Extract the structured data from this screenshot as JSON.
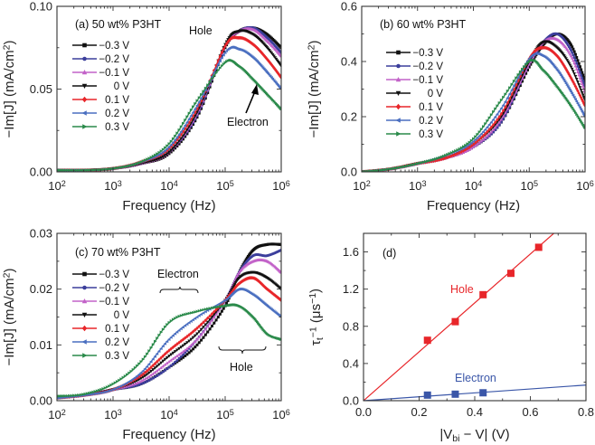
{
  "chart_data": [
    {
      "type": "line",
      "title": "(a) 50 wt% P3HT",
      "xlabel": "Frequency (Hz)",
      "ylabel": "−Im[J] (mA/cm^{2})",
      "xscale": "log",
      "xlim": [
        100,
        1000000
      ],
      "ylim": [
        0,
        0.1
      ],
      "xticks": [
        "10^{2}",
        "10^{3}",
        "10^{4}",
        "10^{5}",
        "10^{6}"
      ],
      "yticks": [
        {
          "v": 0,
          "label": "0.00"
        },
        {
          "v": 0.05,
          "label": "0.05"
        },
        {
          "v": 0.1,
          "label": "0.10"
        }
      ],
      "x_log10": [
        2,
        2.5,
        3,
        3.5,
        4,
        4.5,
        5,
        5.25,
        5.5,
        5.75,
        6
      ],
      "series": [
        {
          "name": "−0.3 V",
          "color": "#111111",
          "values": [
            0.001,
            0.001,
            0.002,
            0.005,
            0.011,
            0.033,
            0.075,
            0.085,
            0.087,
            0.083,
            0.075
          ]
        },
        {
          "name": "−0.2 V",
          "color": "#3c3f9c",
          "values": [
            0.001,
            0.001,
            0.002,
            0.005,
            0.012,
            0.034,
            0.076,
            0.085,
            0.087,
            0.081,
            0.072
          ]
        },
        {
          "name": "−0.1 V",
          "color": "#c262c8",
          "values": [
            0.001,
            0.001,
            0.002,
            0.005,
            0.012,
            0.035,
            0.076,
            0.085,
            0.086,
            0.079,
            0.07
          ]
        },
        {
          "name": "0 V",
          "color": "#111111",
          "values": [
            0.001,
            0.001,
            0.002,
            0.005,
            0.012,
            0.036,
            0.077,
            0.085,
            0.083,
            0.075,
            0.064
          ]
        },
        {
          "name": "0.1 V",
          "color": "#e8262a",
          "values": [
            0.001,
            0.001,
            0.002,
            0.006,
            0.014,
            0.038,
            0.076,
            0.081,
            0.077,
            0.068,
            0.057
          ]
        },
        {
          "name": "0.2 V",
          "color": "#4a6fc0",
          "values": [
            0.001,
            0.001,
            0.002,
            0.006,
            0.015,
            0.04,
            0.072,
            0.074,
            0.069,
            0.06,
            0.05
          ]
        },
        {
          "name": "0.3 V",
          "color": "#2a8a4a",
          "values": [
            0.001,
            0.001,
            0.002,
            0.006,
            0.017,
            0.043,
            0.066,
            0.064,
            0.056,
            0.047,
            0.038
          ]
        }
      ],
      "annotations": {
        "hole": "Hole",
        "electron": "Electron"
      }
    },
    {
      "type": "line",
      "title": "(b) 60 wt% P3HT",
      "xlabel": "Frequency (Hz)",
      "ylabel": "−Im[J] (mA/cm^{2})",
      "xscale": "log",
      "xlim": [
        100,
        1000000
      ],
      "ylim": [
        0,
        0.6
      ],
      "xticks": [
        "10^{2}",
        "10^{3}",
        "10^{4}",
        "10^{5}",
        "10^{6}"
      ],
      "yticks": [
        {
          "v": 0,
          "label": "0.0"
        },
        {
          "v": 0.2,
          "label": "0.2"
        },
        {
          "v": 0.4,
          "label": "0.4"
        },
        {
          "v": 0.6,
          "label": "0.6"
        }
      ],
      "x_log10": [
        2,
        2.5,
        3,
        3.5,
        4,
        4.5,
        5,
        5.25,
        5.5,
        5.75,
        6
      ],
      "series": [
        {
          "name": "−0.3 V",
          "color": "#111111",
          "values": [
            0.0,
            0.01,
            0.03,
            0.05,
            0.09,
            0.18,
            0.38,
            0.46,
            0.5,
            0.46,
            0.33
          ]
        },
        {
          "name": "−0.2 V",
          "color": "#3c3f9c",
          "values": [
            0.0,
            0.01,
            0.03,
            0.05,
            0.09,
            0.18,
            0.39,
            0.47,
            0.5,
            0.44,
            0.31
          ]
        },
        {
          "name": "−0.1 V",
          "color": "#c262c8",
          "values": [
            0.0,
            0.01,
            0.03,
            0.05,
            0.09,
            0.19,
            0.39,
            0.47,
            0.48,
            0.42,
            0.29
          ]
        },
        {
          "name": "0 V",
          "color": "#111111",
          "values": [
            0.0,
            0.01,
            0.03,
            0.05,
            0.1,
            0.2,
            0.4,
            0.47,
            0.45,
            0.38,
            0.26
          ]
        },
        {
          "name": "0.1 V",
          "color": "#e8262a",
          "values": [
            0.0,
            0.01,
            0.03,
            0.05,
            0.1,
            0.21,
            0.41,
            0.45,
            0.42,
            0.34,
            0.24
          ]
        },
        {
          "name": "0.2 V",
          "color": "#4a6fc0",
          "values": [
            0.0,
            0.01,
            0.03,
            0.06,
            0.11,
            0.23,
            0.41,
            0.42,
            0.37,
            0.29,
            0.2
          ]
        },
        {
          "name": "0.3 V",
          "color": "#2a8a4a",
          "values": [
            0.0,
            0.01,
            0.03,
            0.06,
            0.12,
            0.26,
            0.4,
            0.37,
            0.31,
            0.24,
            0.16
          ]
        }
      ]
    },
    {
      "type": "line",
      "title": "(c) 70 wt% P3HT",
      "xlabel": "Frequency (Hz)",
      "ylabel": "−Im[J] (mA/cm^{2})",
      "xscale": "log",
      "xlim": [
        100,
        1000000
      ],
      "ylim": [
        0,
        0.03
      ],
      "xticks": [
        "10^{2}",
        "10^{3}",
        "10^{4}",
        "10^{5}",
        "10^{6}"
      ],
      "yticks": [
        {
          "v": 0,
          "label": "0.00"
        },
        {
          "v": 0.01,
          "label": "0.01"
        },
        {
          "v": 0.02,
          "label": "0.02"
        },
        {
          "v": 0.03,
          "label": "0.03"
        }
      ],
      "x_log10": [
        2,
        2.5,
        3,
        3.5,
        4,
        4.5,
        5,
        5.25,
        5.5,
        5.75,
        6
      ],
      "series": [
        {
          "name": "−0.3 V",
          "color": "#111111",
          "values": [
            0.0005,
            0.001,
            0.002,
            0.003,
            0.006,
            0.01,
            0.017,
            0.023,
            0.027,
            0.028,
            0.028
          ]
        },
        {
          "name": "−0.2 V",
          "color": "#3c3f9c",
          "values": [
            0.0005,
            0.001,
            0.002,
            0.003,
            0.006,
            0.011,
            0.018,
            0.023,
            0.026,
            0.026,
            0.027
          ]
        },
        {
          "name": "−0.1 V",
          "color": "#c262c8",
          "values": [
            0.0005,
            0.001,
            0.002,
            0.0035,
            0.007,
            0.011,
            0.018,
            0.023,
            0.025,
            0.025,
            0.023
          ]
        },
        {
          "name": "0 V",
          "color": "#111111",
          "values": [
            0.0005,
            0.001,
            0.002,
            0.004,
            0.008,
            0.012,
            0.018,
            0.022,
            0.023,
            0.022,
            0.02
          ]
        },
        {
          "name": "0.1 V",
          "color": "#e8262a",
          "values": [
            0.0005,
            0.001,
            0.002,
            0.0045,
            0.009,
            0.013,
            0.018,
            0.021,
            0.022,
            0.02,
            0.018
          ]
        },
        {
          "name": "0.2 V",
          "color": "#4a6fc0",
          "values": [
            0.0005,
            0.001,
            0.002,
            0.005,
            0.011,
            0.015,
            0.018,
            0.02,
            0.019,
            0.017,
            0.015
          ]
        },
        {
          "name": "0.3 V",
          "color": "#2a8a4a",
          "values": [
            0.0008,
            0.0012,
            0.003,
            0.007,
            0.014,
            0.016,
            0.017,
            0.017,
            0.015,
            0.012,
            0.011
          ]
        }
      ],
      "annotations": {
        "electron": "Electron",
        "hole": "Hole"
      }
    },
    {
      "type": "scatter",
      "title": "(d)",
      "xlabel": "|V_{bi} − V| (V)",
      "ylabel": "τ_{t}^{−1} (μs^{−1})",
      "xlim": [
        0,
        0.8
      ],
      "ylim": [
        0,
        1.8
      ],
      "xticks": [
        {
          "v": 0,
          "label": "0.0"
        },
        {
          "v": 0.2,
          "label": "0.2"
        },
        {
          "v": 0.4,
          "label": "0.4"
        },
        {
          "v": 0.6,
          "label": "0.6"
        },
        {
          "v": 0.8,
          "label": "0.8"
        }
      ],
      "yticks": [
        {
          "v": 0,
          "label": "0.0"
        },
        {
          "v": 0.4,
          "label": "0.4"
        },
        {
          "v": 0.8,
          "label": "0.8"
        },
        {
          "v": 1.2,
          "label": "1.2"
        },
        {
          "v": 1.6,
          "label": "1.6"
        }
      ],
      "series": [
        {
          "name": "Hole",
          "color": "#e8262a",
          "x": [
            0.23,
            0.33,
            0.43,
            0.53,
            0.63
          ],
          "y": [
            0.65,
            0.85,
            1.14,
            1.37,
            1.65
          ],
          "fit_slope": 2.63
        },
        {
          "name": "Electron",
          "color": "#3a56a8",
          "x": [
            0.23,
            0.33,
            0.43
          ],
          "y": [
            0.06,
            0.07,
            0.085
          ],
          "fit_slope": 0.21
        }
      ]
    }
  ]
}
